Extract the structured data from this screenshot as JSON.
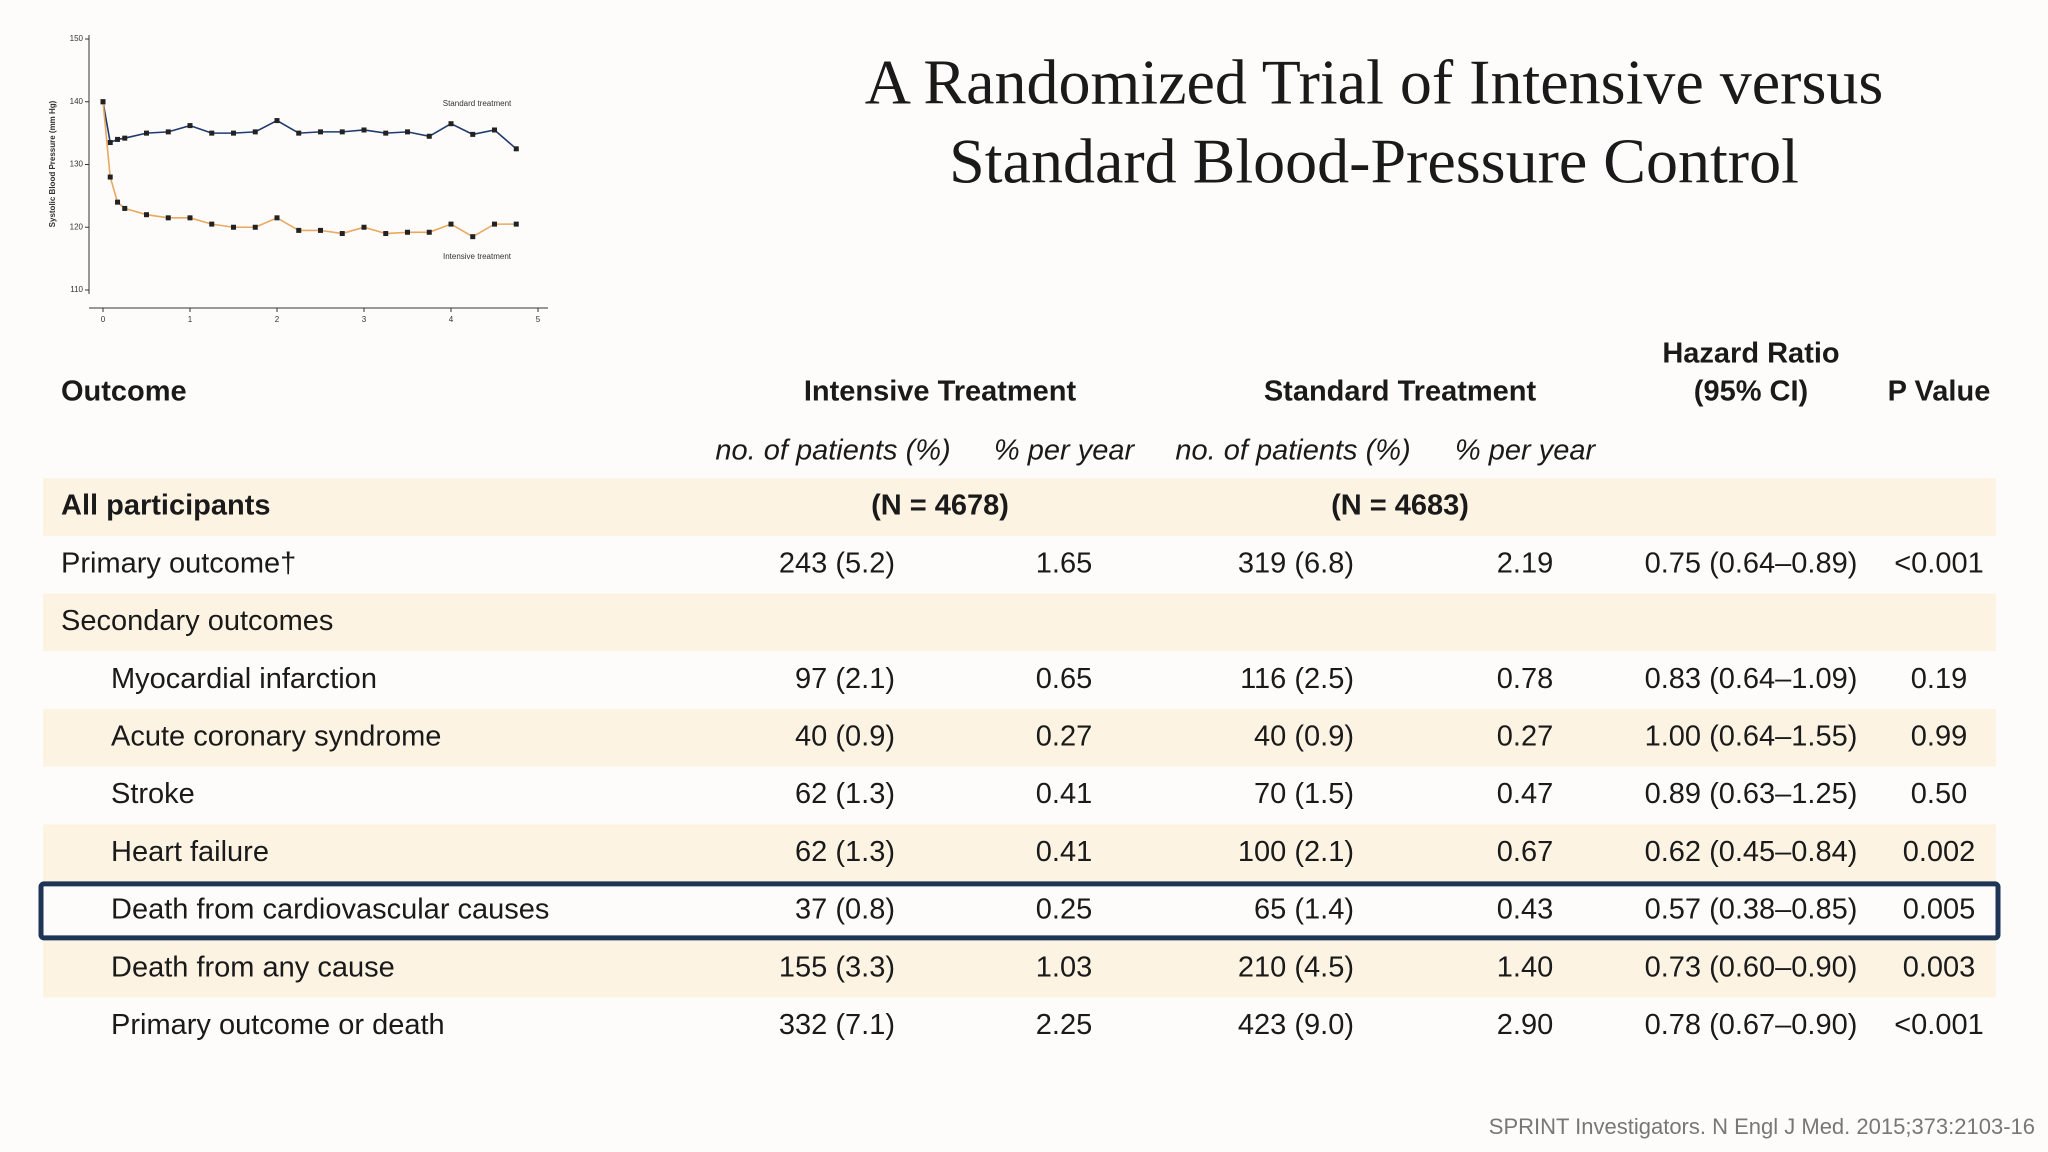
{
  "title": [
    "A Randomized Trial of Intensive versus",
    "Standard Blood-Pressure Control"
  ],
  "chart_data": {
    "type": "line",
    "y_label": "Systolic Blood Pressure (mm Hg)",
    "x": [
      0,
      0.083,
      0.167,
      0.25,
      0.5,
      0.75,
      1,
      1.25,
      1.5,
      1.75,
      2,
      2.25,
      2.5,
      2.75,
      3,
      3.25,
      3.5,
      3.75,
      4,
      4.25,
      4.5,
      4.75
    ],
    "series": [
      {
        "name": "Standard treatment",
        "color": "#1f3a6e",
        "values": [
          140,
          133.5,
          134,
          134.2,
          135,
          135.2,
          136.2,
          135,
          135,
          135.2,
          137,
          135,
          135.2,
          135.2,
          135.5,
          135,
          135.2,
          134.5,
          136.5,
          134.8,
          135.5,
          132.5
        ]
      },
      {
        "name": "Intensive treatment",
        "color": "#e8a860",
        "values": [
          140,
          128,
          124,
          123,
          122,
          121.5,
          121.5,
          120.5,
          120,
          120,
          121.5,
          119.5,
          119.5,
          119,
          120,
          119,
          119.2,
          119.2,
          120.5,
          118.5,
          120.5,
          120.5
        ]
      }
    ],
    "xlim": [
      0,
      5
    ],
    "ylim": [
      110,
      150
    ],
    "xticks": [
      0,
      1,
      2,
      3,
      4,
      5
    ],
    "yticks": [
      110,
      120,
      130,
      140,
      150
    ]
  },
  "table": {
    "header": {
      "outcome": "Outcome",
      "intensive": "Intensive Treatment",
      "standard": "Standard Treatment",
      "hazard_ratio": [
        "Hazard Ratio",
        "(95% CI)"
      ],
      "p_value": "P Value"
    },
    "subheader": [
      "no. of patients (%)",
      "% per year",
      "no. of patients (%)",
      "% per year"
    ],
    "all_participants": {
      "label": "All participants",
      "intensive_n": "(N = 4678)",
      "standard_n": "(N = 4683)"
    },
    "primary": [
      "Primary outcome†",
      "243 (5.2)",
      "1.65",
      "319 (6.8)",
      "2.19",
      "0.75 (0.64–0.89)",
      "<0.001"
    ],
    "secondary": {
      "label": "Secondary outcomes",
      "rows": [
        [
          "Myocardial infarction",
          "97 (2.1)",
          "0.65",
          "116 (2.5)",
          "0.78",
          "0.83 (0.64–1.09)",
          "0.19"
        ],
        [
          "Acute coronary syndrome",
          "40 (0.9)",
          "0.27",
          "40 (0.9)",
          "0.27",
          "1.00 (0.64–1.55)",
          "0.99"
        ],
        [
          "Stroke",
          "62 (1.3)",
          "0.41",
          "70 (1.5)",
          "0.47",
          "0.89 (0.63–1.25)",
          "0.50"
        ],
        [
          "Heart failure",
          "62 (1.3)",
          "0.41",
          "100 (2.1)",
          "0.67",
          "0.62 (0.45–0.84)",
          "0.002"
        ],
        [
          "Death from cardiovascular causes",
          "37 (0.8)",
          "0.25",
          "65 (1.4)",
          "0.43",
          "0.57 (0.38–0.85)",
          "0.005"
        ],
        [
          "Death from any cause",
          "155 (3.3)",
          "1.03",
          "210 (4.5)",
          "1.40",
          "0.73 (0.60–0.90)",
          "0.003"
        ],
        [
          "Primary outcome or death",
          "332 (7.1)",
          "2.25",
          "423 (9.0)",
          "2.90",
          "0.78 (0.67–0.90)",
          "<0.001"
        ]
      ]
    }
  },
  "citation": "SPRINT Investigators. N Engl J Med. 2015;373:2103-16"
}
